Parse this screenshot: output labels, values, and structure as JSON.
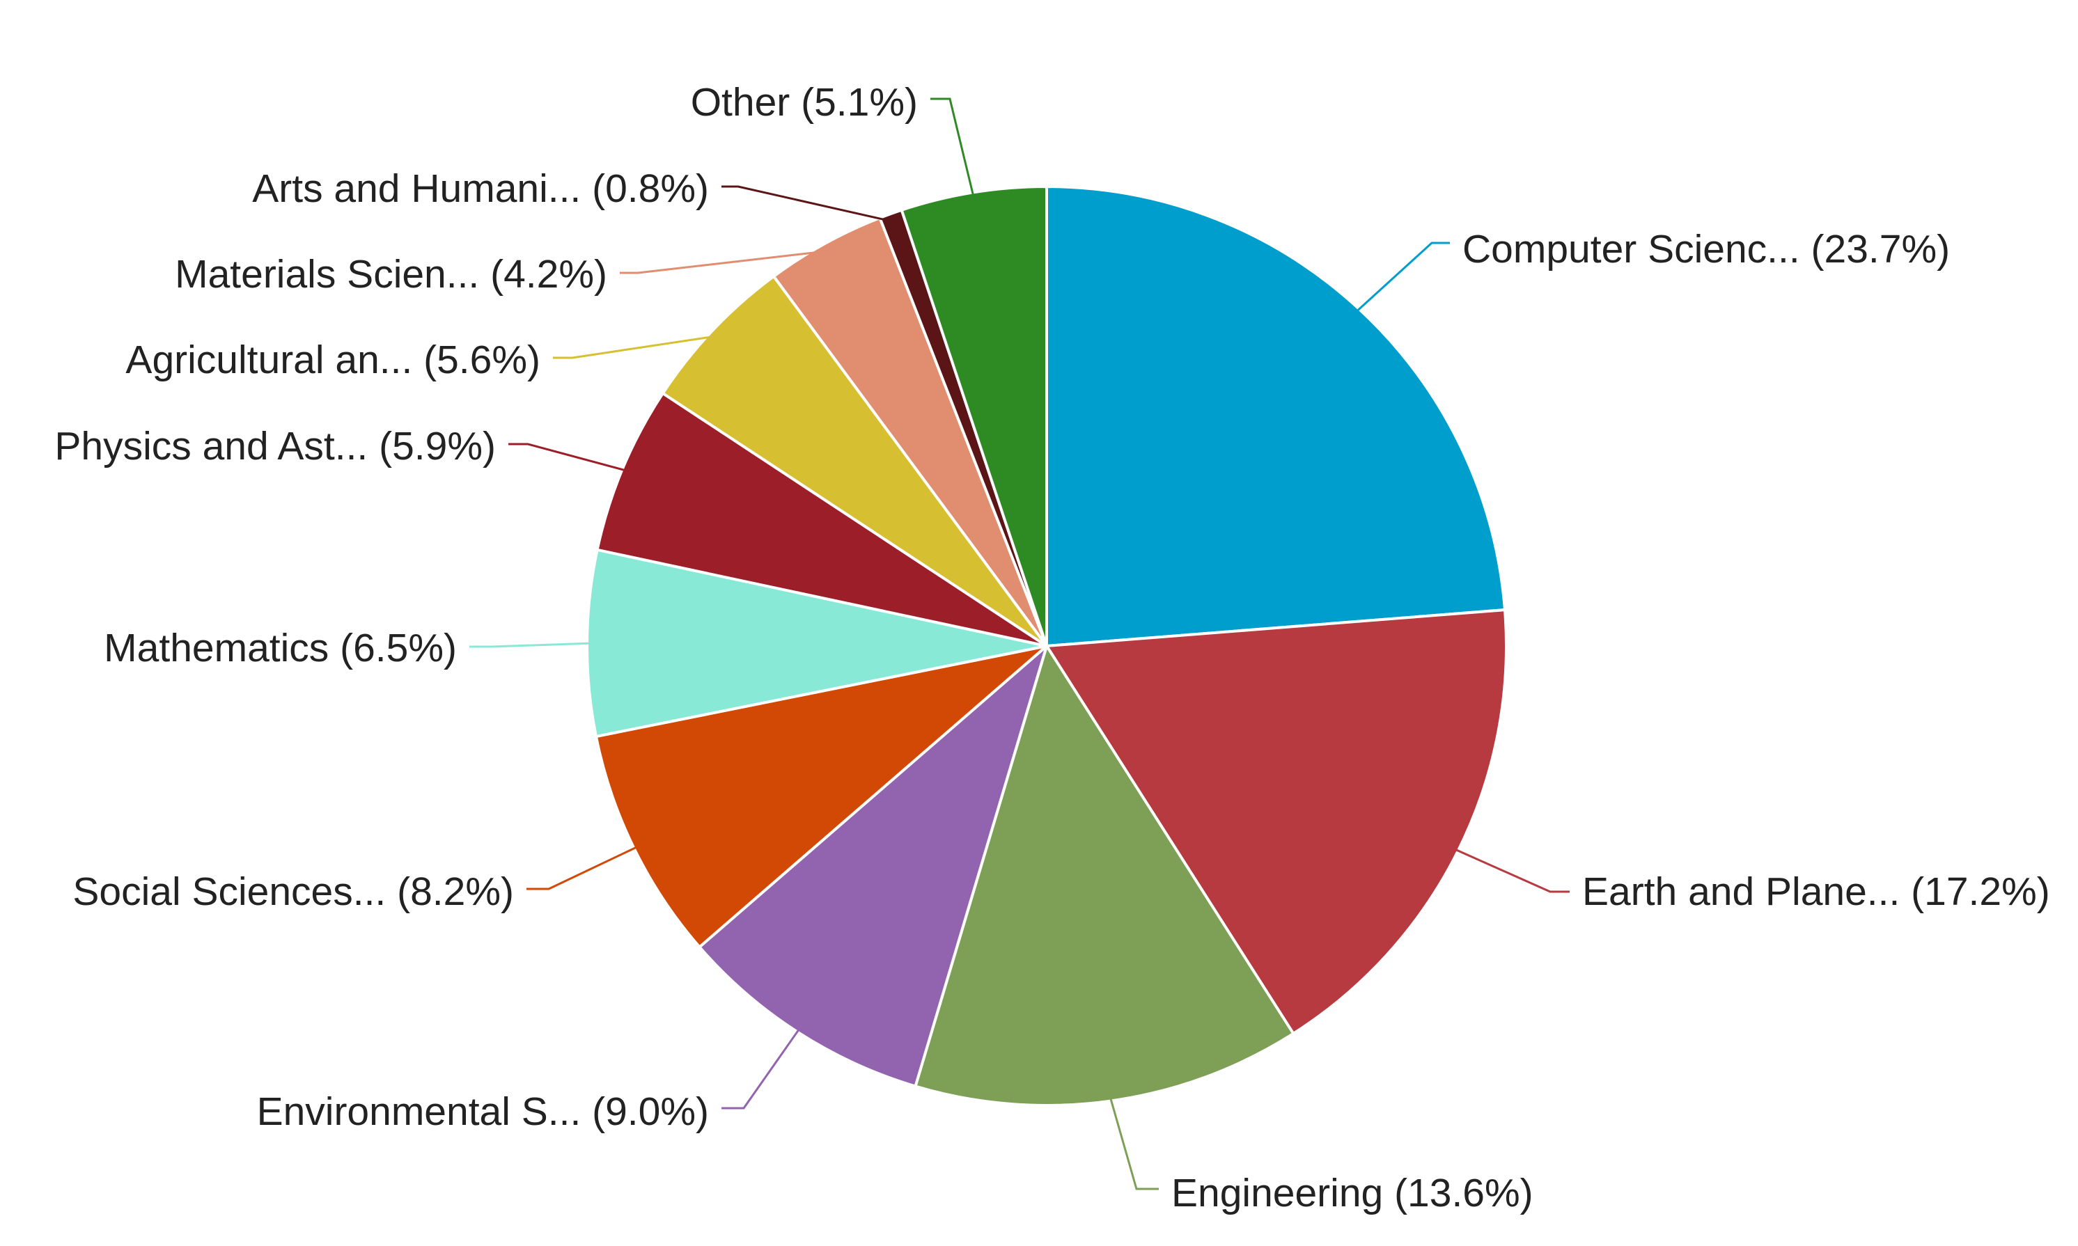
{
  "chart_data": {
    "type": "pie",
    "title": "",
    "legend": "none",
    "slices": [
      {
        "label": "Computer Scienc...",
        "percent": 23.7,
        "display": "Computer Scienc... (23.7%)",
        "color": "#009ecd"
      },
      {
        "label": "Earth and Plane...",
        "percent": 17.2,
        "display": "Earth and Plane... (17.2%)",
        "color": "#b73a40"
      },
      {
        "label": "Engineering",
        "percent": 13.6,
        "display": "Engineering (13.6%)",
        "color": "#7e9f56"
      },
      {
        "label": "Environmental S...",
        "percent": 9.0,
        "display": "Environmental S... (9.0%)",
        "color": "#9264b0"
      },
      {
        "label": "Social Sciences...",
        "percent": 8.2,
        "display": "Social Sciences... (8.2%)",
        "color": "#d14904"
      },
      {
        "label": "Mathematics",
        "percent": 6.5,
        "display": "Mathematics (6.5%)",
        "color": "#89e9d7"
      },
      {
        "label": "Physics and Ast...",
        "percent": 5.9,
        "display": "Physics and Ast... (5.9%)",
        "color": "#9b1e28"
      },
      {
        "label": "Agricultural an...",
        "percent": 5.6,
        "display": "Agricultural an... (5.6%)",
        "color": "#d7bf32"
      },
      {
        "label": "Materials Scien...",
        "percent": 4.2,
        "display": "Materials Scien... (4.2%)",
        "color": "#e18e70"
      },
      {
        "label": "Arts and Humani...",
        "percent": 0.8,
        "display": "Arts and Humani... (0.8%)",
        "color": "#5b1517"
      },
      {
        "label": "Other",
        "percent": 5.1,
        "display": "Other (5.1%)",
        "color": "#2e8b24"
      }
    ]
  }
}
